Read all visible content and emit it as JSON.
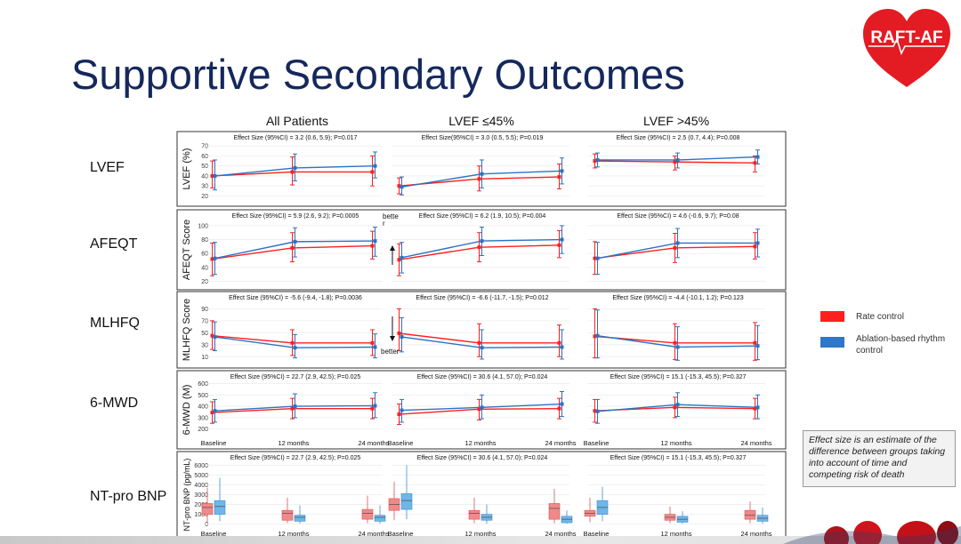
{
  "title": "Supportive Secondary Outcomes",
  "logo": {
    "text": "RAFT-AF",
    "color": "#e31b23"
  },
  "colors": {
    "rate": "#ff1f1f",
    "ablation": "#2b72c4",
    "rate_bar": "#f08a8a",
    "ablation_bar": "#6fb6e8"
  },
  "legend": [
    {
      "label": "Rate control",
      "color": "#ff1f1f"
    },
    {
      "label": "Ablation-based rhythm control",
      "color": "#2f77c9"
    }
  ],
  "note": "Effect size is an estimate of the difference between groups taking into account of time and competing risk of death",
  "chart_data": {
    "type": "line",
    "columns": [
      "All Patients",
      "LVEF ≤45%",
      "LVEF >45%"
    ],
    "series_names": [
      "Rate control",
      "Ablation-based rhythm control"
    ],
    "x_categories": [
      "Baseline",
      "12 months",
      "24 months"
    ],
    "x_tick_row": 3,
    "arrows": [
      {
        "row": 1,
        "text": "bette r",
        "direction": "up"
      },
      {
        "row": 2,
        "text": "better",
        "direction": "down"
      }
    ],
    "rows": [
      {
        "label": "LVEF",
        "ylabel": "LVEF (%)",
        "ylim": [
          15,
          72
        ],
        "yticks": [
          20,
          30,
          40,
          50,
          60,
          70
        ],
        "kind": "line",
        "panels": [
          {
            "effect": "Effect Size (95%CI) = 3.2 (0.6, 5.9); P=0.017",
            "rate": [
              [
                40,
                28,
                55
              ],
              [
                44,
                31,
                59
              ],
              [
                44,
                30,
                60
              ]
            ],
            "ablation": [
              [
                40,
                26,
                56
              ],
              [
                48,
                35,
                62
              ],
              [
                50,
                38,
                64
              ]
            ]
          },
          {
            "effect": "Effect Size(95%CI) = 3.0 (0.5, 5.5); P=0.019",
            "rate": [
              [
                30,
                22,
                38
              ],
              [
                37,
                25,
                50
              ],
              [
                39,
                27,
                52
              ]
            ],
            "ablation": [
              [
                29,
                21,
                39
              ],
              [
                42,
                28,
                56
              ],
              [
                45,
                32,
                58
              ]
            ]
          },
          {
            "effect": "Effect Size (95%CI) = 2.5 (0.7, 4.4); P=0.008",
            "rate": [
              [
                55,
                48,
                62
              ],
              [
                54,
                46,
                60
              ],
              [
                53,
                44,
                60
              ]
            ],
            "ablation": [
              [
                56,
                49,
                63
              ],
              [
                56,
                48,
                63
              ],
              [
                59,
                52,
                66
              ]
            ]
          }
        ]
      },
      {
        "label": "AFEQT",
        "ylabel": "AFEQT Score",
        "ylim": [
          18,
          105
        ],
        "yticks": [
          20,
          40,
          60,
          80,
          100
        ],
        "kind": "line",
        "panels": [
          {
            "effect": "Effect Size (95%CI) = 5.9 (2.6, 9.2); P=0.0005",
            "rate": [
              [
                52,
                28,
                75
              ],
              [
                68,
                48,
                90
              ],
              [
                71,
                52,
                92
              ]
            ],
            "ablation": [
              [
                53,
                30,
                76
              ],
              [
                77,
                55,
                97
              ],
              [
                78,
                56,
                98
              ]
            ]
          },
          {
            "effect": "Effect Size (95%CI) = 6.2 (1.9, 10.5); P=0.004",
            "rate": [
              [
                51,
                28,
                74
              ],
              [
                69,
                48,
                90
              ],
              [
                72,
                54,
                93
              ]
            ],
            "ablation": [
              [
                54,
                32,
                76
              ],
              [
                78,
                57,
                98
              ],
              [
                80,
                60,
                100
              ]
            ]
          },
          {
            "effect": "Effect Size (95%CI) = 4.6 (-0.6, 9.7); P=0.08",
            "rate": [
              [
                53,
                30,
                77
              ],
              [
                68,
                47,
                89
              ],
              [
                70,
                52,
                90
              ]
            ],
            "ablation": [
              [
                53,
                30,
                76
              ],
              [
                75,
                54,
                96
              ],
              [
                75,
                55,
                95
              ]
            ]
          }
        ]
      },
      {
        "label": "MLHFQ",
        "ylabel": "MLHFQ Score",
        "ylim": [
          0,
          98
        ],
        "yticks": [
          10,
          30,
          50,
          70,
          90
        ],
        "kind": "line",
        "panels": [
          {
            "effect": "Effect Size (95%CI) = -5.6 (-9.4, -1.8); P=0.0036",
            "rate": [
              [
                45,
                22,
                70
              ],
              [
                33,
                12,
                55
              ],
              [
                33,
                12,
                55
              ]
            ],
            "ablation": [
              [
                43,
                20,
                68
              ],
              [
                25,
                8,
                47
              ],
              [
                26,
                8,
                48
              ]
            ]
          },
          {
            "effect": "Effect Size (95%CI) = -6.6 (-11.7, -1.5); P=0.012",
            "rate": [
              [
                49,
                20,
                90
              ],
              [
                33,
                10,
                65
              ],
              [
                33,
                10,
                63
              ]
            ],
            "ablation": [
              [
                43,
                18,
                75
              ],
              [
                25,
                6,
                55
              ],
              [
                26,
                6,
                55
              ]
            ]
          },
          {
            "effect": "Effect Size (95%CI) = -4.4 (-10.1, 1.2); P=0.123",
            "rate": [
              [
                44,
                8,
                90
              ],
              [
                33,
                5,
                65
              ],
              [
                33,
                4,
                67
              ]
            ],
            "ablation": [
              [
                45,
                8,
                88
              ],
              [
                26,
                4,
                60
              ],
              [
                28,
                5,
                62
              ]
            ]
          }
        ]
      },
      {
        "label": "6-MWD",
        "ylabel": "6-MWD (M)",
        "ylim": [
          150,
          620
        ],
        "yticks": [
          200,
          300,
          400,
          500,
          600
        ],
        "kind": "line",
        "panels": [
          {
            "effect": "Effect Size (95%CI) = 22.7 (2.9, 42.5); P=0.025",
            "rate": [
              [
                345,
                250,
                440
              ],
              [
                380,
                290,
                470
              ],
              [
                380,
                290,
                470
              ]
            ],
            "ablation": [
              [
                360,
                260,
                460
              ],
              [
                400,
                300,
                510
              ],
              [
                405,
                300,
                520
              ]
            ]
          },
          {
            "effect": "Effect Size (95%CI) = 30.6 (4.1, 57.0); P=0.024",
            "rate": [
              [
                330,
                240,
                420
              ],
              [
                375,
                280,
                460
              ],
              [
                380,
                290,
                470
              ]
            ],
            "ablation": [
              [
                365,
                260,
                460
              ],
              [
                390,
                290,
                500
              ],
              [
                420,
                310,
                530
              ]
            ]
          },
          {
            "effect": "Effect Size (95%CI) = 15.1 (-15.3, 45.5); P=0.327",
            "rate": [
              [
                360,
                260,
                460
              ],
              [
                390,
                300,
                480
              ],
              [
                380,
                290,
                470
              ]
            ],
            "ablation": [
              [
                355,
                250,
                460
              ],
              [
                415,
                310,
                520
              ],
              [
                390,
                290,
                500
              ]
            ]
          }
        ]
      },
      {
        "label": "NT-pro BNP",
        "ylabel": "NT-pro BNP (pg/mL)",
        "ylim": [
          -300,
          6300
        ],
        "yticks": [
          0,
          1000,
          2000,
          3000,
          4000,
          5000,
          6000
        ],
        "kind": "box",
        "panels": [
          {
            "effect": "Effect Size (95%CI) = 22.7 (2.9, 42.5); P=0.025",
            "rate": [
              [
                200,
                1000,
                1700,
                2100,
                3700
              ],
              [
                100,
                400,
                1100,
                1400,
                2700
              ],
              [
                100,
                500,
                1100,
                1500,
                2900
              ]
            ],
            "ablation": [
              [
                300,
                1000,
                1800,
                2400,
                4700
              ],
              [
                50,
                300,
                700,
                900,
                1900
              ],
              [
                50,
                300,
                700,
                900,
                1900
              ]
            ]
          },
          {
            "effect": "Effect Size (95%CI) = 30.6 (4.1, 57.0); P=0.024",
            "rate": [
              [
                400,
                1400,
                2000,
                2600,
                4300
              ],
              [
                100,
                500,
                1100,
                1400,
                2700
              ],
              [
                100,
                500,
                1600,
                2100,
                3600
              ]
            ],
            "ablation": [
              [
                500,
                1500,
                2400,
                3100,
                6000
              ],
              [
                50,
                400,
                700,
                1000,
                2000
              ],
              [
                50,
                150,
                500,
                800,
                1400
              ]
            ]
          },
          {
            "effect": "Effect Size (95%CI) = 15.1 (-15.3, 45.5); P=0.327",
            "rate": [
              [
                200,
                800,
                1100,
                1400,
                2700
              ],
              [
                100,
                400,
                700,
                1000,
                1800
              ],
              [
                100,
                500,
                900,
                1400,
                2300
              ]
            ],
            "ablation": [
              [
                300,
                1000,
                1700,
                2400,
                3800
              ],
              [
                50,
                200,
                500,
                800,
                1300
              ],
              [
                50,
                300,
                600,
                900,
                1700
              ]
            ]
          }
        ]
      }
    ]
  }
}
